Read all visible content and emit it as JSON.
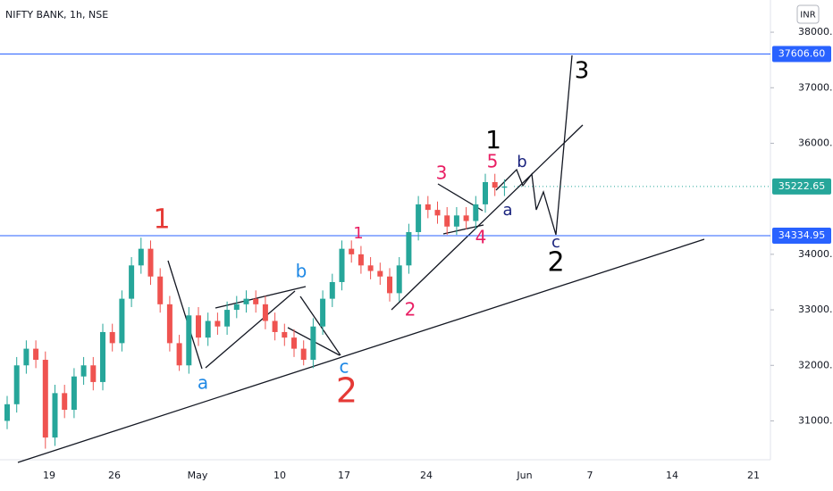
{
  "chart_data": {
    "type": "candlestick",
    "title": "NIFTY BANK, 1h, NSE",
    "currency": "INR",
    "up_color": "#26a69a",
    "down_color": "#ef5350",
    "ylim": [
      30300,
      38580
    ],
    "yticks": [
      {
        "value": 31000,
        "label": "31000.00"
      },
      {
        "value": 32000,
        "label": "32000.00"
      },
      {
        "value": 33000,
        "label": "33000.00"
      },
      {
        "value": 34000,
        "label": "34000.00"
      },
      {
        "value": 36000,
        "label": "36000.00"
      },
      {
        "value": 37000,
        "label": "37000.00"
      },
      {
        "value": 38000,
        "label": "38000.00"
      }
    ],
    "x_axis_labels": [
      "19",
      "26",
      "May",
      "10",
      "17",
      "24",
      "Jun",
      "7",
      "14",
      "21"
    ],
    "candles": {
      "open": [
        31000,
        31300,
        32000,
        32300,
        32100,
        30700,
        31500,
        31200,
        31800,
        32000,
        31700,
        32600,
        32400,
        33200,
        33800,
        34100,
        33600,
        33100,
        32400,
        32000,
        32900,
        32500,
        32800,
        32700,
        33000,
        33100,
        33200,
        33100,
        32800,
        32600,
        32500,
        32300,
        32100,
        32700,
        33200,
        33500,
        34100,
        34000,
        33800,
        33700,
        33600,
        33300,
        33800,
        34400,
        34900,
        34800,
        34700,
        34500,
        34700,
        34600,
        34900,
        35300,
        35200
      ],
      "high": [
        31450,
        32150,
        32450,
        32450,
        32250,
        31650,
        31650,
        31950,
        32150,
        32150,
        32750,
        32750,
        33350,
        33950,
        34300,
        34250,
        33750,
        33250,
        32550,
        33050,
        33050,
        32950,
        32950,
        33150,
        33250,
        33350,
        33350,
        33250,
        32950,
        32750,
        32650,
        32450,
        32850,
        33350,
        33650,
        34250,
        34250,
        34150,
        33950,
        33850,
        33750,
        33950,
        34550,
        35050,
        35050,
        34950,
        34850,
        34850,
        34850,
        35050,
        35450,
        35450,
        35350
      ],
      "low": [
        30850,
        31150,
        31850,
        31950,
        30500,
        30550,
        31050,
        31050,
        31650,
        31550,
        31550,
        32250,
        32250,
        33050,
        33650,
        33450,
        32950,
        32250,
        31900,
        31850,
        32350,
        32350,
        32550,
        32550,
        32850,
        32950,
        32950,
        32650,
        32450,
        32350,
        32150,
        32000,
        31950,
        32550,
        33050,
        33350,
        33850,
        33650,
        33550,
        33450,
        33150,
        33150,
        33650,
        34250,
        34650,
        34550,
        34350,
        34350,
        34450,
        34450,
        34750,
        35050,
        35050
      ],
      "close": [
        31300,
        32000,
        32300,
        32100,
        30700,
        31500,
        31200,
        31800,
        32000,
        31700,
        32600,
        32400,
        33200,
        33800,
        34100,
        33600,
        33100,
        32400,
        32000,
        32900,
        32500,
        32800,
        32700,
        33000,
        33100,
        33200,
        33100,
        32800,
        32600,
        32500,
        32300,
        32100,
        32700,
        33200,
        33500,
        34100,
        34000,
        33800,
        33700,
        33600,
        33300,
        33800,
        34400,
        34900,
        34800,
        34700,
        34500,
        34700,
        34600,
        34900,
        35300,
        35200,
        35222.65
      ]
    },
    "hlines": [
      {
        "value": 37606.6,
        "label": "37606.60",
        "color": "#2962ff"
      },
      {
        "value": 34334.95,
        "label": "34334.95",
        "color": "#2962ff"
      }
    ],
    "last_price": {
      "value": 35222.65,
      "label": "35222.65",
      "color": "#26a69a"
    },
    "annotations": [
      {
        "text": "1",
        "color": "#e53935"
      },
      {
        "text": "a",
        "color": "#1e88e5"
      },
      {
        "text": "b",
        "color": "#1e88e5"
      },
      {
        "text": "c",
        "color": "#1e88e5"
      },
      {
        "text": "2",
        "color": "#e53935"
      },
      {
        "text": "1",
        "color": "#e91e63"
      },
      {
        "text": "2",
        "color": "#e91e63"
      },
      {
        "text": "3",
        "color": "#e91e63"
      },
      {
        "text": "4",
        "color": "#e91e63"
      },
      {
        "text": "5",
        "color": "#e91e63"
      },
      {
        "text": "1",
        "color": "#000000"
      },
      {
        "text": "a",
        "color": "#1a237e"
      },
      {
        "text": "b",
        "color": "#1a237e"
      },
      {
        "text": "c",
        "color": "#1a237e"
      },
      {
        "text": "2",
        "color": "#000000"
      },
      {
        "text": "3",
        "color": "#000000"
      }
    ]
  }
}
